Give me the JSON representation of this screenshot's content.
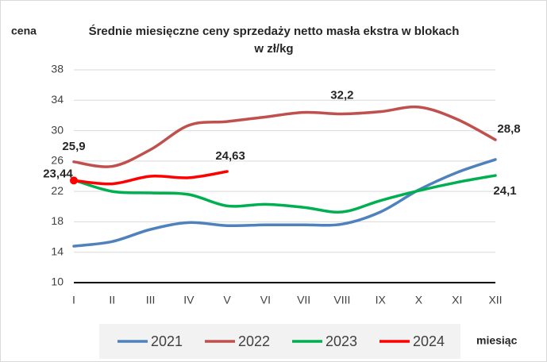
{
  "chart_data": {
    "type": "line",
    "title": [
      "Średnie miesięczne ceny sprzedaży netto masła ekstra w blokach",
      "w zł/kg"
    ],
    "y_label": "cena",
    "x_label": "miesiąc",
    "categories": [
      "I",
      "II",
      "III",
      "IV",
      "V",
      "VI",
      "VII",
      "VIII",
      "IX",
      "X",
      "XI",
      "XII"
    ],
    "ylim": [
      10,
      38
    ],
    "yticks": [
      10,
      14,
      18,
      22,
      26,
      30,
      34,
      38
    ],
    "grid": true,
    "legend": "bottom",
    "series": [
      {
        "name": "2021",
        "color": "#4f81bd",
        "values": [
          14.8,
          15.4,
          17.0,
          17.9,
          17.5,
          17.6,
          17.6,
          17.7,
          19.3,
          22.2,
          24.5,
          26.2
        ]
      },
      {
        "name": "2022",
        "color": "#c0504d",
        "values": [
          25.9,
          25.3,
          27.5,
          30.7,
          31.2,
          31.8,
          32.4,
          32.2,
          32.5,
          33.1,
          31.5,
          28.8
        ],
        "value_labels": [
          "25,9",
          null,
          null,
          null,
          null,
          null,
          null,
          "32,2",
          null,
          null,
          null,
          "28,8"
        ]
      },
      {
        "name": "2023",
        "color": "#00b050",
        "values": [
          23.5,
          22.0,
          21.8,
          21.6,
          20.1,
          20.3,
          19.9,
          19.3,
          20.8,
          22.1,
          23.2,
          24.1
        ],
        "value_labels": [
          null,
          null,
          null,
          null,
          null,
          null,
          null,
          null,
          null,
          null,
          null,
          "24,1"
        ]
      },
      {
        "name": "2024",
        "color": "#ff0000",
        "values": [
          23.44,
          23.0,
          24.0,
          23.8,
          24.63,
          null,
          null,
          null,
          null,
          null,
          null,
          null
        ],
        "value_labels": [
          "23,44",
          null,
          null,
          null,
          "24,63",
          null,
          null,
          null,
          null,
          null,
          null,
          null
        ],
        "markers": [
          0
        ]
      }
    ]
  }
}
